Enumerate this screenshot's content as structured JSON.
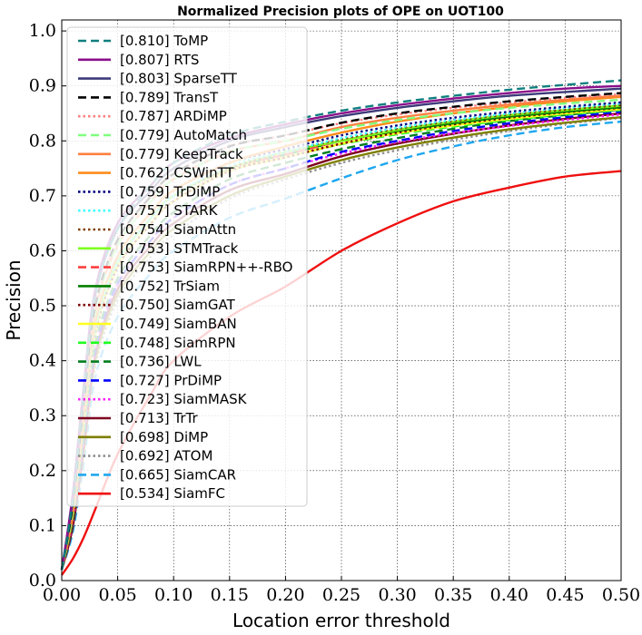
{
  "chart_data": {
    "type": "line",
    "title": "Normalized Precision plots of OPE on UOT100",
    "xlabel": "Location error threshold",
    "ylabel": "Precision",
    "xlim": [
      0,
      0.5
    ],
    "ylim": [
      0,
      1.02
    ],
    "xticks": [
      "0.00",
      "0.05",
      "0.10",
      "0.15",
      "0.20",
      "0.25",
      "0.30",
      "0.35",
      "0.40",
      "0.45",
      "0.50"
    ],
    "yticks": [
      "0.0",
      "0.1",
      "0.2",
      "0.3",
      "0.4",
      "0.5",
      "0.6",
      "0.7",
      "0.8",
      "0.9",
      "1.0"
    ],
    "grid": true,
    "legend_position": "upper-left",
    "x": [
      0,
      0.01,
      0.02,
      0.03,
      0.05,
      0.08,
      0.1,
      0.15,
      0.2,
      0.25,
      0.3,
      0.35,
      0.4,
      0.45,
      0.5
    ],
    "series": [
      {
        "name": "[0.810] ToMP",
        "color": "#0f7f7f",
        "dash": "dashed",
        "values": [
          0.02,
          0.15,
          0.35,
          0.52,
          0.64,
          0.72,
          0.76,
          0.81,
          0.835,
          0.855,
          0.87,
          0.882,
          0.893,
          0.902,
          0.91
        ]
      },
      {
        "name": "[0.807] RTS",
        "color": "#8b0f8b",
        "dash": "solid",
        "values": [
          0.02,
          0.16,
          0.36,
          0.53,
          0.65,
          0.72,
          0.76,
          0.805,
          0.83,
          0.85,
          0.865,
          0.877,
          0.887,
          0.895,
          0.9
        ]
      },
      {
        "name": "[0.803] SparseTT",
        "color": "#3d3b7a",
        "dash": "solid",
        "values": [
          0.02,
          0.15,
          0.35,
          0.52,
          0.64,
          0.71,
          0.75,
          0.8,
          0.825,
          0.845,
          0.86,
          0.872,
          0.882,
          0.889,
          0.895
        ]
      },
      {
        "name": "[0.789] TransT",
        "color": "#000000",
        "dash": "dashed",
        "values": [
          0.02,
          0.14,
          0.33,
          0.5,
          0.62,
          0.7,
          0.74,
          0.79,
          0.81,
          0.833,
          0.85,
          0.862,
          0.872,
          0.88,
          0.887
        ]
      },
      {
        "name": "[0.787] ARDiMP",
        "color": "#ff7f7f",
        "dash": "dotted",
        "values": [
          0.02,
          0.14,
          0.33,
          0.5,
          0.62,
          0.7,
          0.74,
          0.79,
          0.81,
          0.832,
          0.848,
          0.86,
          0.87,
          0.878,
          0.885
        ]
      },
      {
        "name": "[0.779] AutoMatch",
        "color": "#7fff7f",
        "dash": "dashed",
        "values": [
          0.02,
          0.13,
          0.32,
          0.49,
          0.61,
          0.69,
          0.73,
          0.78,
          0.8,
          0.822,
          0.838,
          0.85,
          0.86,
          0.868,
          0.875
        ]
      },
      {
        "name": "[0.779] KeepTrack",
        "color": "#ff7f3f",
        "dash": "solid",
        "values": [
          0.02,
          0.13,
          0.32,
          0.49,
          0.61,
          0.69,
          0.73,
          0.78,
          0.8,
          0.825,
          0.842,
          0.855,
          0.866,
          0.875,
          0.882
        ]
      },
      {
        "name": "[0.762] CSWinTT",
        "color": "#ff8c1a",
        "dash": "solid",
        "values": [
          0.02,
          0.12,
          0.3,
          0.47,
          0.59,
          0.67,
          0.71,
          0.76,
          0.79,
          0.815,
          0.835,
          0.85,
          0.862,
          0.872,
          0.88
        ]
      },
      {
        "name": "[0.759] TrDiMP",
        "color": "#00007f",
        "dash": "dotted",
        "values": [
          0.02,
          0.12,
          0.3,
          0.47,
          0.59,
          0.67,
          0.71,
          0.76,
          0.785,
          0.81,
          0.828,
          0.842,
          0.853,
          0.862,
          0.87
        ]
      },
      {
        "name": "[0.757] STARK",
        "color": "#3fffff",
        "dash": "dotted",
        "values": [
          0.02,
          0.12,
          0.3,
          0.46,
          0.58,
          0.66,
          0.7,
          0.755,
          0.78,
          0.805,
          0.824,
          0.838,
          0.85,
          0.86,
          0.868
        ]
      },
      {
        "name": "[0.754] SiamAttn",
        "color": "#7f3f00",
        "dash": "dotted",
        "values": [
          0.02,
          0.12,
          0.29,
          0.46,
          0.58,
          0.66,
          0.7,
          0.75,
          0.78,
          0.803,
          0.822,
          0.836,
          0.848,
          0.857,
          0.865
        ]
      },
      {
        "name": "[0.753] STMTrack",
        "color": "#7fff1f",
        "dash": "solid",
        "values": [
          0.02,
          0.12,
          0.29,
          0.46,
          0.58,
          0.66,
          0.7,
          0.75,
          0.78,
          0.8,
          0.82,
          0.835,
          0.847,
          0.856,
          0.864
        ]
      },
      {
        "name": "[0.753] SiamRPN++-RBO",
        "color": "#ff3f3f",
        "dash": "dashed",
        "values": [
          0.02,
          0.12,
          0.29,
          0.46,
          0.58,
          0.66,
          0.7,
          0.75,
          0.775,
          0.8,
          0.82,
          0.835,
          0.847,
          0.856,
          0.864
        ]
      },
      {
        "name": "[0.752] TrSiam",
        "color": "#007f00",
        "dash": "solid",
        "values": [
          0.02,
          0.12,
          0.29,
          0.46,
          0.58,
          0.66,
          0.7,
          0.75,
          0.775,
          0.8,
          0.818,
          0.832,
          0.844,
          0.853,
          0.861
        ]
      },
      {
        "name": "[0.750] SiamGAT",
        "color": "#7f0000",
        "dash": "dotted",
        "values": [
          0.02,
          0.12,
          0.29,
          0.45,
          0.57,
          0.65,
          0.69,
          0.745,
          0.77,
          0.795,
          0.815,
          0.83,
          0.842,
          0.852,
          0.86
        ]
      },
      {
        "name": "[0.749] SiamBAN",
        "color": "#ffff1f",
        "dash": "solid",
        "values": [
          0.02,
          0.12,
          0.29,
          0.45,
          0.57,
          0.65,
          0.69,
          0.745,
          0.77,
          0.795,
          0.814,
          0.828,
          0.84,
          0.85,
          0.858
        ]
      },
      {
        "name": "[0.748] SiamRPN",
        "color": "#1fff1f",
        "dash": "dashed",
        "values": [
          0.02,
          0.12,
          0.28,
          0.45,
          0.57,
          0.65,
          0.69,
          0.745,
          0.77,
          0.794,
          0.812,
          0.826,
          0.838,
          0.848,
          0.856
        ]
      },
      {
        "name": "[0.736] LWL",
        "color": "#007f1f",
        "dash": "dashed",
        "values": [
          0.02,
          0.11,
          0.27,
          0.43,
          0.55,
          0.63,
          0.67,
          0.73,
          0.76,
          0.785,
          0.805,
          0.822,
          0.836,
          0.847,
          0.857
        ]
      },
      {
        "name": "[0.727] PrDiMP",
        "color": "#0000ff",
        "dash": "dashed",
        "values": [
          0.02,
          0.11,
          0.26,
          0.42,
          0.54,
          0.62,
          0.66,
          0.72,
          0.75,
          0.78,
          0.8,
          0.818,
          0.832,
          0.843,
          0.853
        ]
      },
      {
        "name": "[0.723] SiamMASK",
        "color": "#ff1fff",
        "dash": "dotted",
        "values": [
          0.02,
          0.11,
          0.26,
          0.42,
          0.54,
          0.62,
          0.66,
          0.72,
          0.75,
          0.777,
          0.798,
          0.814,
          0.827,
          0.838,
          0.848
        ]
      },
      {
        "name": "[0.713] TrTr",
        "color": "#7f001f",
        "dash": "solid",
        "values": [
          0.02,
          0.1,
          0.25,
          0.41,
          0.53,
          0.61,
          0.65,
          0.71,
          0.74,
          0.772,
          0.795,
          0.813,
          0.828,
          0.84,
          0.85
        ]
      },
      {
        "name": "[0.698] DiMP",
        "color": "#7f7f00",
        "dash": "solid",
        "values": [
          0.02,
          0.1,
          0.24,
          0.4,
          0.52,
          0.6,
          0.64,
          0.7,
          0.735,
          0.765,
          0.788,
          0.806,
          0.821,
          0.833,
          0.843
        ]
      },
      {
        "name": "[0.692] ATOM",
        "color": "#8f8f8f",
        "dash": "dotted",
        "values": [
          0.02,
          0.1,
          0.24,
          0.39,
          0.51,
          0.59,
          0.63,
          0.695,
          0.73,
          0.76,
          0.783,
          0.802,
          0.818,
          0.831,
          0.842
        ]
      },
      {
        "name": "[0.665] SiamCAR",
        "color": "#1fa7ef",
        "dash": "dashed",
        "values": [
          0.02,
          0.09,
          0.22,
          0.37,
          0.48,
          0.56,
          0.6,
          0.66,
          0.695,
          0.732,
          0.765,
          0.79,
          0.81,
          0.825,
          0.835
        ]
      },
      {
        "name": "[0.534] SiamFC",
        "color": "#ef0f0f",
        "dash": "solid",
        "values": [
          0.01,
          0.04,
          0.08,
          0.13,
          0.23,
          0.34,
          0.4,
          0.48,
          0.535,
          0.6,
          0.65,
          0.69,
          0.715,
          0.735,
          0.745
        ]
      }
    ]
  }
}
